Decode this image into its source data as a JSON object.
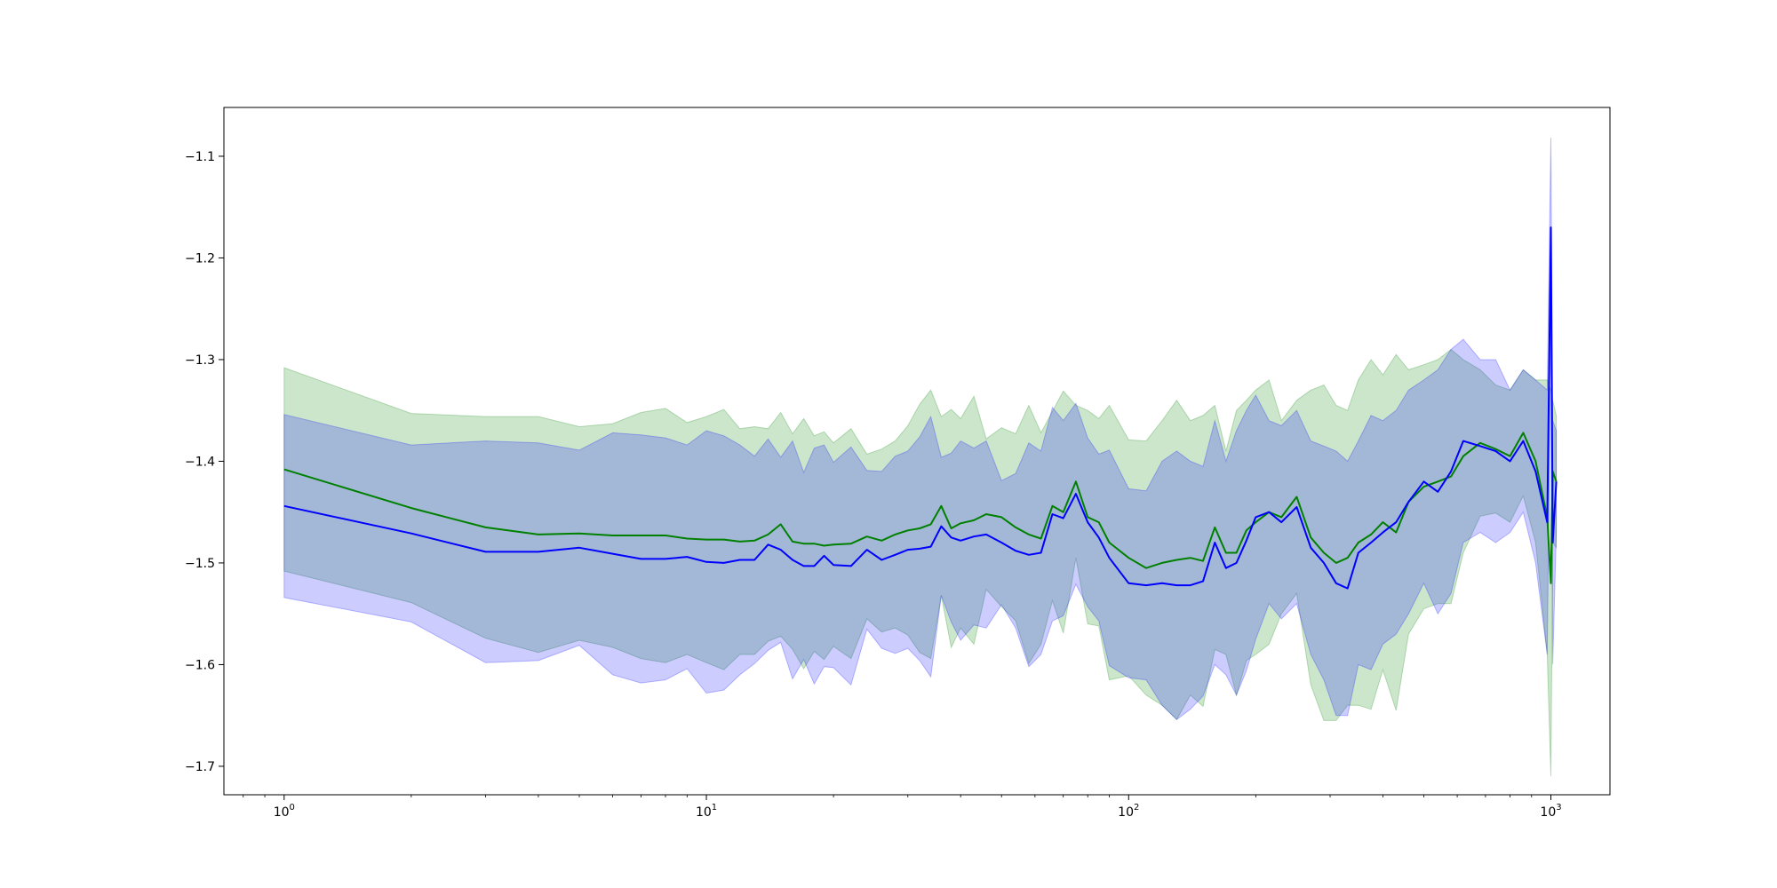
{
  "chart_data": {
    "type": "line",
    "title": "",
    "xlabel": "",
    "ylabel": "",
    "xscale": "log",
    "xlim": [
      0.72,
      1380
    ],
    "ylim": [
      -1.728,
      -1.052
    ],
    "grid": false,
    "legend": "none",
    "x_ticks": [
      {
        "value": 1,
        "base": "10",
        "exp": "0"
      },
      {
        "value": 10,
        "base": "10",
        "exp": "1"
      },
      {
        "value": 100,
        "base": "10",
        "exp": "2"
      },
      {
        "value": 1000,
        "base": "10",
        "exp": "3"
      }
    ],
    "y_ticks": [
      {
        "value": -1.1,
        "label": "−1.1"
      },
      {
        "value": -1.2,
        "label": "−1.2"
      },
      {
        "value": -1.3,
        "label": "−1.3"
      },
      {
        "value": -1.4,
        "label": "−1.4"
      },
      {
        "value": -1.5,
        "label": "−1.5"
      },
      {
        "value": -1.6,
        "label": "−1.6"
      },
      {
        "value": -1.7,
        "label": "−1.7"
      }
    ],
    "series": [
      {
        "color": "#008000",
        "band_color": "#008000",
        "band_opacity": 0.2,
        "x": [
          1,
          2,
          3,
          4,
          5,
          6,
          7,
          8,
          9,
          10,
          11,
          12,
          13,
          14,
          15,
          16,
          17,
          18,
          19,
          20,
          22,
          24,
          26,
          28,
          30,
          32,
          34,
          36,
          38,
          40,
          43,
          46,
          50,
          54,
          58,
          62,
          66,
          70,
          75,
          80,
          85,
          90,
          100,
          110,
          120,
          130,
          140,
          150,
          160,
          170,
          180,
          190,
          200,
          215,
          230,
          250,
          270,
          290,
          310,
          330,
          350,
          375,
          400,
          430,
          460,
          500,
          540,
          580,
          620,
          680,
          740,
          800,
          860,
          920,
          980,
          1000,
          1010,
          1030
        ],
        "mean": [
          -1.408,
          -1.446,
          -1.465,
          -1.472,
          -1.471,
          -1.473,
          -1.473,
          -1.473,
          -1.476,
          -1.477,
          -1.477,
          -1.479,
          -1.478,
          -1.472,
          -1.462,
          -1.479,
          -1.481,
          -1.481,
          -1.483,
          -1.482,
          -1.481,
          -1.474,
          -1.478,
          -1.472,
          -1.468,
          -1.466,
          -1.462,
          -1.444,
          -1.466,
          -1.461,
          -1.458,
          -1.452,
          -1.455,
          -1.465,
          -1.472,
          -1.476,
          -1.444,
          -1.45,
          -1.42,
          -1.455,
          -1.46,
          -1.48,
          -1.495,
          -1.505,
          -1.5,
          -1.497,
          -1.495,
          -1.498,
          -1.465,
          -1.49,
          -1.49,
          -1.468,
          -1.46,
          -1.45,
          -1.455,
          -1.435,
          -1.475,
          -1.49,
          -1.5,
          -1.495,
          -1.48,
          -1.472,
          -1.46,
          -1.47,
          -1.44,
          -1.425,
          -1.42,
          -1.415,
          -1.395,
          -1.382,
          -1.388,
          -1.395,
          -1.372,
          -1.4,
          -1.455,
          -1.52,
          -1.41,
          -1.42
        ],
        "upper": [
          -1.308,
          -1.353,
          -1.356,
          -1.356,
          -1.366,
          -1.363,
          -1.352,
          -1.348,
          -1.362,
          -1.356,
          -1.349,
          -1.368,
          -1.366,
          -1.368,
          -1.352,
          -1.373,
          -1.358,
          -1.375,
          -1.371,
          -1.382,
          -1.368,
          -1.393,
          -1.388,
          -1.38,
          -1.365,
          -1.344,
          -1.33,
          -1.356,
          -1.349,
          -1.358,
          -1.336,
          -1.378,
          -1.367,
          -1.373,
          -1.345,
          -1.372,
          -1.351,
          -1.331,
          -1.345,
          -1.35,
          -1.358,
          -1.345,
          -1.379,
          -1.38,
          -1.36,
          -1.34,
          -1.36,
          -1.355,
          -1.345,
          -1.39,
          -1.35,
          -1.34,
          -1.33,
          -1.32,
          -1.36,
          -1.34,
          -1.33,
          -1.325,
          -1.345,
          -1.35,
          -1.32,
          -1.3,
          -1.315,
          -1.295,
          -1.31,
          -1.305,
          -1.3,
          -1.29,
          -1.3,
          -1.31,
          -1.325,
          -1.33,
          -1.31,
          -1.32,
          -1.32,
          -1.33,
          -1.34,
          -1.355
        ],
        "lower": [
          -1.508,
          -1.539,
          -1.574,
          -1.588,
          -1.576,
          -1.583,
          -1.594,
          -1.598,
          -1.59,
          -1.598,
          -1.605,
          -1.59,
          -1.59,
          -1.577,
          -1.572,
          -1.585,
          -1.604,
          -1.587,
          -1.595,
          -1.582,
          -1.594,
          -1.555,
          -1.568,
          -1.564,
          -1.571,
          -1.588,
          -1.594,
          -1.532,
          -1.583,
          -1.564,
          -1.58,
          -1.526,
          -1.543,
          -1.557,
          -1.599,
          -1.58,
          -1.537,
          -1.569,
          -1.495,
          -1.56,
          -1.562,
          -1.615,
          -1.611,
          -1.63,
          -1.64,
          -1.654,
          -1.63,
          -1.641,
          -1.585,
          -1.59,
          -1.63,
          -1.596,
          -1.59,
          -1.58,
          -1.55,
          -1.53,
          -1.62,
          -1.655,
          -1.655,
          -1.64,
          -1.64,
          -1.644,
          -1.605,
          -1.645,
          -1.57,
          -1.545,
          -1.54,
          -1.54,
          -1.49,
          -1.454,
          -1.451,
          -1.46,
          -1.434,
          -1.48,
          -1.59,
          -1.71,
          -1.48,
          -1.485
        ]
      },
      {
        "color": "#0000ff",
        "band_color": "#0000ff",
        "band_opacity": 0.2,
        "x": [
          1,
          2,
          3,
          4,
          5,
          6,
          7,
          8,
          9,
          10,
          11,
          12,
          13,
          14,
          15,
          16,
          17,
          18,
          19,
          20,
          22,
          24,
          26,
          28,
          30,
          32,
          34,
          36,
          38,
          40,
          43,
          46,
          50,
          54,
          58,
          62,
          66,
          70,
          75,
          80,
          85,
          90,
          100,
          110,
          120,
          130,
          140,
          150,
          160,
          170,
          180,
          190,
          200,
          215,
          230,
          250,
          270,
          290,
          310,
          330,
          350,
          375,
          400,
          430,
          460,
          500,
          540,
          580,
          620,
          680,
          740,
          800,
          860,
          920,
          980,
          1000,
          1010,
          1030
        ],
        "mean": [
          -1.444,
          -1.471,
          -1.489,
          -1.489,
          -1.485,
          -1.491,
          -1.496,
          -1.496,
          -1.494,
          -1.499,
          -1.5,
          -1.497,
          -1.497,
          -1.482,
          -1.487,
          -1.497,
          -1.503,
          -1.503,
          -1.493,
          -1.502,
          -1.503,
          -1.487,
          -1.497,
          -1.492,
          -1.487,
          -1.486,
          -1.484,
          -1.464,
          -1.475,
          -1.478,
          -1.474,
          -1.472,
          -1.48,
          -1.488,
          -1.492,
          -1.49,
          -1.452,
          -1.456,
          -1.432,
          -1.46,
          -1.475,
          -1.495,
          -1.52,
          -1.522,
          -1.52,
          -1.522,
          -1.522,
          -1.518,
          -1.48,
          -1.505,
          -1.5,
          -1.478,
          -1.455,
          -1.45,
          -1.46,
          -1.445,
          -1.485,
          -1.5,
          -1.52,
          -1.525,
          -1.49,
          -1.48,
          -1.47,
          -1.46,
          -1.44,
          -1.42,
          -1.43,
          -1.41,
          -1.38,
          -1.385,
          -1.39,
          -1.4,
          -1.38,
          -1.41,
          -1.46,
          -1.17,
          -1.48,
          -1.42
        ],
        "upper": [
          -1.354,
          -1.384,
          -1.38,
          -1.382,
          -1.389,
          -1.372,
          -1.374,
          -1.377,
          -1.384,
          -1.37,
          -1.375,
          -1.384,
          -1.395,
          -1.378,
          -1.396,
          -1.38,
          -1.411,
          -1.387,
          -1.384,
          -1.401,
          -1.386,
          -1.409,
          -1.41,
          -1.395,
          -1.39,
          -1.376,
          -1.356,
          -1.396,
          -1.392,
          -1.38,
          -1.387,
          -1.38,
          -1.419,
          -1.412,
          -1.382,
          -1.39,
          -1.347,
          -1.36,
          -1.343,
          -1.377,
          -1.393,
          -1.389,
          -1.427,
          -1.429,
          -1.4,
          -1.39,
          -1.4,
          -1.405,
          -1.36,
          -1.4,
          -1.37,
          -1.35,
          -1.335,
          -1.36,
          -1.365,
          -1.35,
          -1.38,
          -1.385,
          -1.39,
          -1.4,
          -1.38,
          -1.355,
          -1.36,
          -1.35,
          -1.33,
          -1.32,
          -1.31,
          -1.29,
          -1.28,
          -1.3,
          -1.3,
          -1.33,
          -1.31,
          -1.32,
          -1.33,
          -1.082,
          -1.36,
          -1.37
        ],
        "lower": [
          -1.534,
          -1.558,
          -1.598,
          -1.596,
          -1.581,
          -1.61,
          -1.618,
          -1.615,
          -1.604,
          -1.628,
          -1.625,
          -1.61,
          -1.599,
          -1.586,
          -1.578,
          -1.614,
          -1.595,
          -1.619,
          -1.602,
          -1.603,
          -1.62,
          -1.565,
          -1.584,
          -1.589,
          -1.584,
          -1.596,
          -1.612,
          -1.532,
          -1.558,
          -1.576,
          -1.561,
          -1.564,
          -1.541,
          -1.564,
          -1.602,
          -1.59,
          -1.557,
          -1.552,
          -1.521,
          -1.543,
          -1.557,
          -1.601,
          -1.613,
          -1.615,
          -1.64,
          -1.654,
          -1.644,
          -1.631,
          -1.6,
          -1.61,
          -1.63,
          -1.606,
          -1.575,
          -1.54,
          -1.555,
          -1.54,
          -1.59,
          -1.615,
          -1.65,
          -1.65,
          -1.6,
          -1.605,
          -1.58,
          -1.57,
          -1.55,
          -1.52,
          -1.55,
          -1.53,
          -1.48,
          -1.47,
          -1.48,
          -1.47,
          -1.45,
          -1.5,
          -1.59,
          -1.258,
          -1.6,
          -1.47
        ]
      }
    ]
  }
}
